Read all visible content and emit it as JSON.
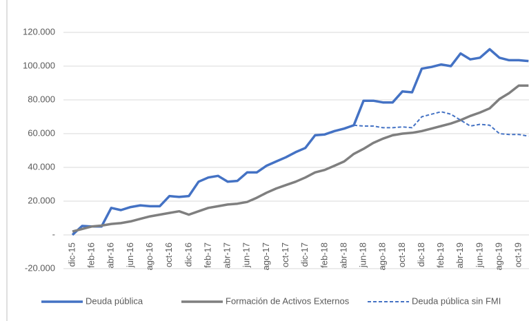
{
  "chart_data": {
    "type": "line",
    "categories": [
      "dic-15",
      null,
      "feb-16",
      null,
      "abr-16",
      null,
      "jun-16",
      null,
      "ago-16",
      null,
      "oct-16",
      null,
      "dic-16",
      null,
      "feb-17",
      null,
      "abr-17",
      null,
      "jun-17",
      null,
      "ago-17",
      null,
      "oct-17",
      null,
      "dic-17",
      null,
      "feb-18",
      null,
      "abr-18",
      null,
      "jun-18",
      null,
      "ago-18",
      null,
      "oct-18",
      null,
      "dic-18",
      null,
      "feb-19",
      null,
      "abr-19",
      null,
      "jun-19",
      null,
      "ago-19",
      null,
      "oct-19",
      null
    ],
    "series": [
      {
        "name": "Deuda pública",
        "color": "#4472c4",
        "dashed": false,
        "values": [
          0,
          5300,
          5000,
          5000,
          16000,
          14700,
          16500,
          17500,
          17000,
          17000,
          23000,
          22500,
          23000,
          31500,
          34000,
          35000,
          31500,
          32000,
          37000,
          37000,
          41000,
          43500,
          46000,
          49000,
          51500,
          59000,
          59500,
          61500,
          63000,
          65000,
          79500,
          79500,
          78500,
          78500,
          85000,
          84500,
          98500,
          99500,
          101000,
          100000,
          107500,
          104000,
          105000,
          110000,
          105000,
          103500,
          103500,
          103000
        ]
      },
      {
        "name": "Formación de Activos Externos",
        "color": "#7f7f7f",
        "dashed": false,
        "values": [
          2000,
          3500,
          5000,
          5500,
          6500,
          7000,
          8000,
          9500,
          11000,
          12000,
          13000,
          14000,
          12000,
          14000,
          16000,
          17000,
          18000,
          18500,
          19500,
          22000,
          25000,
          27500,
          29500,
          31500,
          34000,
          37000,
          38500,
          41000,
          43500,
          48000,
          51000,
          54500,
          57000,
          59000,
          60000,
          60500,
          61500,
          63000,
          64500,
          66000,
          68000,
          70500,
          72500,
          75000,
          80500,
          84000,
          88500,
          88500
        ]
      },
      {
        "name": "Deuda pública sin FMI",
        "color": "#4472c4",
        "dashed": true,
        "values": [
          null,
          null,
          null,
          null,
          null,
          null,
          null,
          null,
          null,
          null,
          null,
          null,
          null,
          null,
          null,
          null,
          null,
          null,
          null,
          null,
          null,
          null,
          null,
          null,
          null,
          null,
          null,
          null,
          null,
          65000,
          64500,
          64500,
          63500,
          63500,
          64000,
          63500,
          70000,
          71500,
          73000,
          71500,
          68000,
          64500,
          65500,
          65000,
          60000,
          59500,
          59500,
          58500
        ]
      }
    ],
    "ylim": [
      -20000,
      120000
    ],
    "yticks": [
      {
        "value": -20000,
        "label": "-20.000"
      },
      {
        "value": 0,
        "label": "-"
      },
      {
        "value": 20000,
        "label": "20.000"
      },
      {
        "value": 40000,
        "label": "40.000"
      },
      {
        "value": 60000,
        "label": "60.000"
      },
      {
        "value": 80000,
        "label": "80.000"
      },
      {
        "value": 100000,
        "label": "100.000"
      },
      {
        "value": 120000,
        "label": "120.000"
      }
    ],
    "grid": true,
    "legend": "bottom"
  }
}
